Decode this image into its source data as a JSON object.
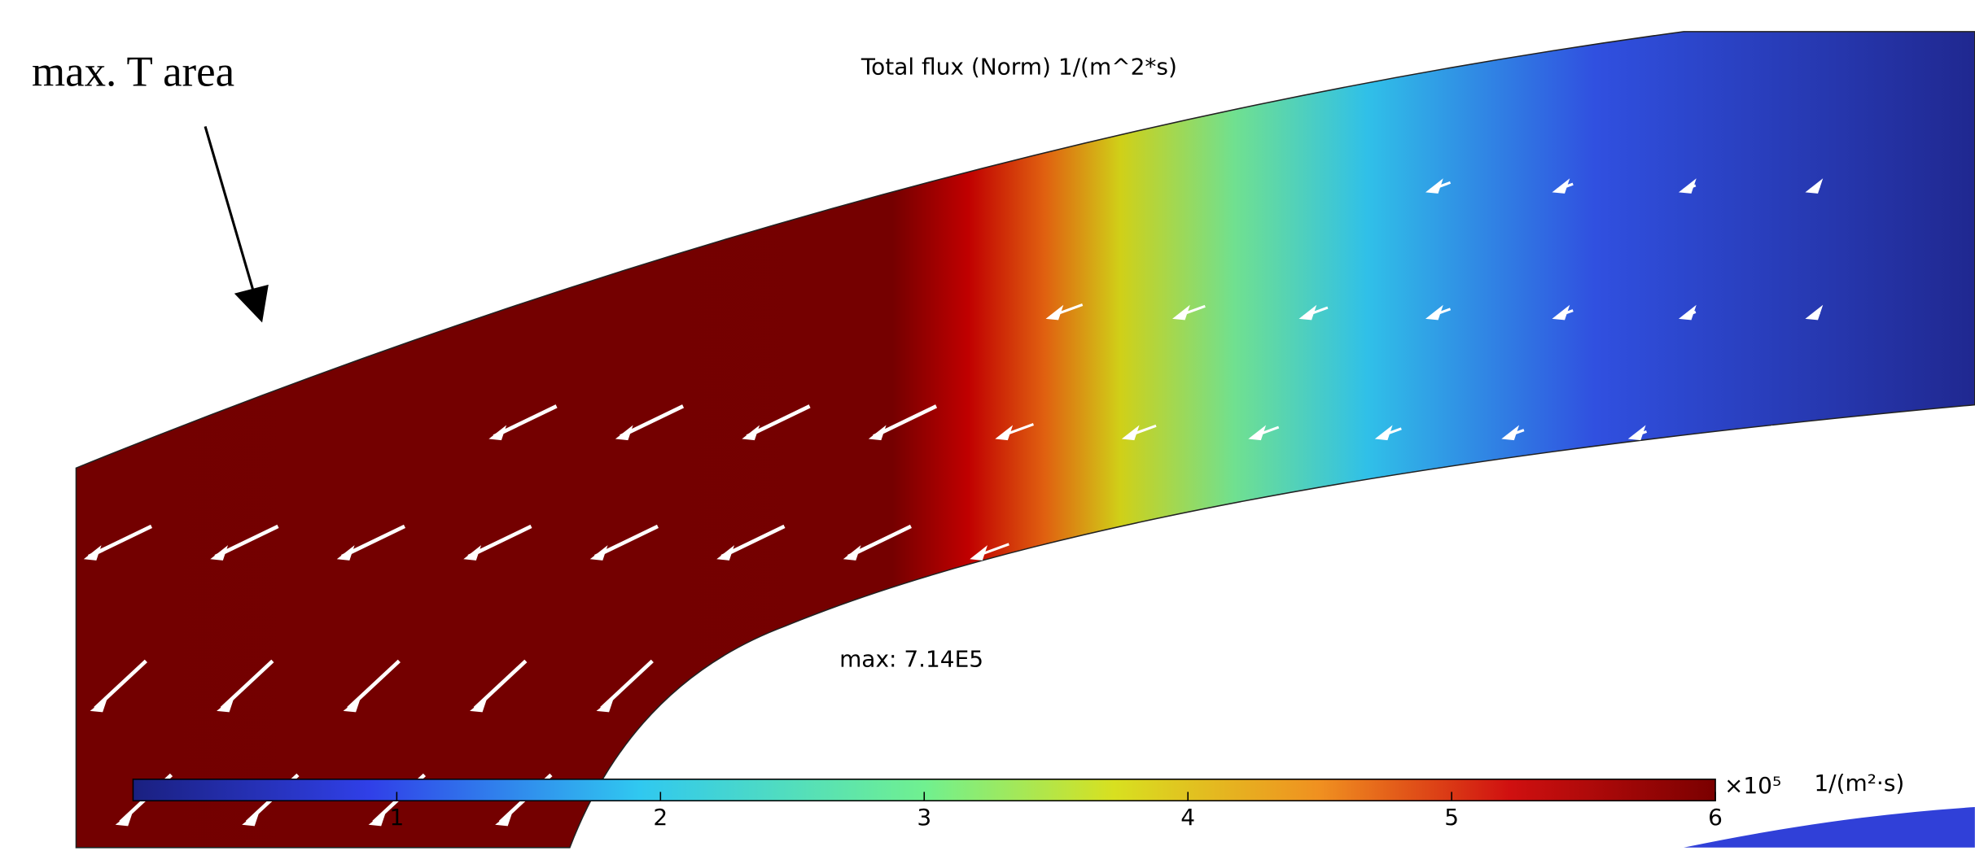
{
  "annotation": "max. T area",
  "plot": {
    "title": "Total flux (Norm) 1/(m^2*s)",
    "max_label": "max: 7.14E5"
  },
  "colorbar": {
    "lim": [
      0,
      6
    ],
    "ticks": [
      1,
      2,
      3,
      4,
      5,
      6
    ],
    "multiplier": "×10⁵",
    "unit": "1/(m²·s)"
  }
}
